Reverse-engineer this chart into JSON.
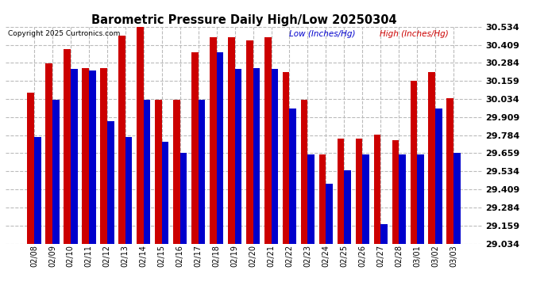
{
  "title": "Barometric Pressure Daily High/Low 20250304",
  "copyright": "Copyright 2025 Curtronics.com",
  "legend_low": "Low (Inches/Hg)",
  "legend_high": "High (Inches/Hg)",
  "low_color": "#0000cc",
  "high_color": "#cc0000",
  "background_color": "#ffffff",
  "dates": [
    "02/08",
    "02/09",
    "02/10",
    "02/11",
    "02/12",
    "02/13",
    "02/14",
    "02/15",
    "02/16",
    "02/17",
    "02/18",
    "02/19",
    "02/20",
    "02/21",
    "02/22",
    "02/23",
    "02/24",
    "02/25",
    "02/26",
    "02/27",
    "02/28",
    "03/01",
    "03/02",
    "03/03"
  ],
  "high_values": [
    30.08,
    30.28,
    30.38,
    30.25,
    30.25,
    30.47,
    30.53,
    30.03,
    30.03,
    30.36,
    30.46,
    30.46,
    30.44,
    30.46,
    30.22,
    30.03,
    29.65,
    29.76,
    29.76,
    29.79,
    29.75,
    30.16,
    30.22,
    30.04
  ],
  "low_values": [
    29.77,
    30.03,
    30.24,
    30.23,
    29.88,
    29.77,
    30.03,
    29.74,
    29.66,
    30.03,
    30.36,
    30.24,
    30.25,
    30.24,
    29.97,
    29.65,
    29.45,
    29.54,
    29.65,
    29.17,
    29.65,
    29.65,
    29.97,
    29.66
  ],
  "ylim": [
    29.034,
    30.534
  ],
  "yticks": [
    29.034,
    29.159,
    29.284,
    29.409,
    29.534,
    29.659,
    29.784,
    29.909,
    30.034,
    30.159,
    30.284,
    30.409,
    30.534
  ],
  "grid_color": "#bbbbbb",
  "bar_width": 0.38
}
